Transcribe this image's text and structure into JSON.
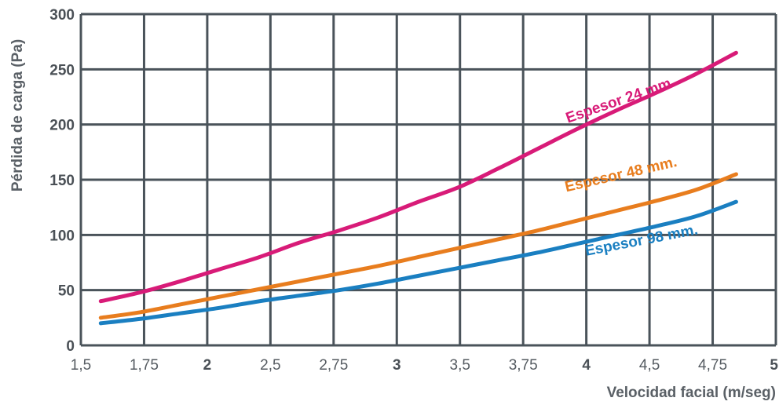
{
  "chart_data": {
    "type": "line",
    "title": "",
    "xlabel": "Velocidad facial (m/seg)",
    "ylabel": "Pérdida de carga (Pa)",
    "xlim": [
      1.5,
      5
    ],
    "ylim": [
      0,
      300
    ],
    "grid": true,
    "x_ticks": [
      {
        "label": "1,5",
        "bold": false
      },
      {
        "label": "1,75",
        "bold": false
      },
      {
        "label": "2",
        "bold": true
      },
      {
        "label": "2,5",
        "bold": false
      },
      {
        "label": "2,75",
        "bold": false
      },
      {
        "label": "3",
        "bold": true
      },
      {
        "label": "3,5",
        "bold": false
      },
      {
        "label": "3,75",
        "bold": false
      },
      {
        "label": "4",
        "bold": true
      },
      {
        "label": "4,5",
        "bold": false
      },
      {
        "label": "4,75",
        "bold": false
      },
      {
        "label": "5",
        "bold": true
      }
    ],
    "y_ticks": [
      "0",
      "50",
      "100",
      "150",
      "200",
      "250",
      "300"
    ],
    "series": [
      {
        "name": "Espesor 24 mm.",
        "color": "#d81b78",
        "label_angle": -19,
        "x": [
          1.6,
          1.8,
          2.0,
          2.2,
          2.4,
          2.6,
          2.8,
          3.0,
          3.2,
          3.4,
          3.6,
          3.8,
          4.0,
          4.2,
          4.4,
          4.6,
          4.8
        ],
        "y": [
          40,
          48,
          58,
          69,
          80,
          93,
          104,
          116,
          130,
          143,
          160,
          178,
          196,
          213,
          229,
          246,
          265
        ]
      },
      {
        "name": "Espesor 48 mm.",
        "color": "#e87d1e",
        "label_angle": -13,
        "x": [
          1.6,
          1.8,
          2.0,
          2.2,
          2.4,
          2.6,
          2.8,
          3.0,
          3.2,
          3.4,
          3.6,
          3.8,
          4.0,
          4.2,
          4.4,
          4.6,
          4.8
        ],
        "y": [
          25,
          30,
          37,
          44,
          51,
          58,
          65,
          72,
          80,
          88,
          96,
          104,
          113,
          122,
          131,
          141,
          155
        ]
      },
      {
        "name": "Espesor 98 mm.",
        "color": "#1a7fc1",
        "label_angle": -11,
        "x": [
          1.6,
          1.8,
          2.0,
          2.2,
          2.4,
          2.6,
          2.8,
          3.0,
          3.2,
          3.4,
          3.6,
          3.8,
          4.0,
          4.2,
          4.4,
          4.6,
          4.8
        ],
        "y": [
          20,
          24,
          29,
          34,
          40,
          45,
          50,
          56,
          63,
          70,
          77,
          84,
          92,
          100,
          108,
          117,
          130
        ]
      }
    ]
  }
}
